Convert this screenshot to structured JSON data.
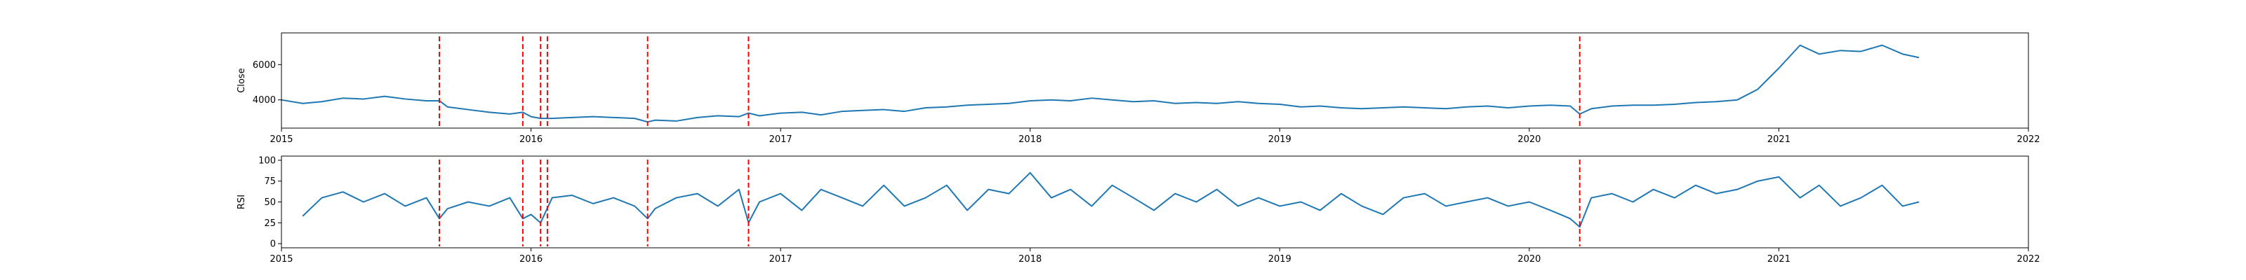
{
  "chart_data": [
    {
      "type": "line",
      "ylabel": "Close",
      "xlabel": "",
      "title": "",
      "xlim": [
        "2015-01-01",
        "2022-01-01"
      ],
      "ylim": [
        2400,
        7800
      ],
      "x_ticks": [
        "2015",
        "2016",
        "2017",
        "2018",
        "2019",
        "2020",
        "2021",
        "2022"
      ],
      "y_ticks": [
        {
          "value": 4000,
          "label": "4000"
        },
        {
          "value": 6000,
          "label": "6000"
        }
      ],
      "line_color": "#1f77b4",
      "vline_color": "#ff0000",
      "vline_style": "dashed",
      "series": [
        {
          "x": [
            "2015-01-01",
            "2015-02-01",
            "2015-03-01",
            "2015-04-01",
            "2015-05-01",
            "2015-06-01",
            "2015-07-01",
            "2015-08-01",
            "2015-08-20",
            "2015-09-01",
            "2015-10-01",
            "2015-11-01",
            "2015-12-01",
            "2015-12-20",
            "2016-01-01",
            "2016-01-15",
            "2016-02-01",
            "2016-03-01",
            "2016-04-01",
            "2016-05-01",
            "2016-06-01",
            "2016-06-20",
            "2016-07-01",
            "2016-08-01",
            "2016-09-01",
            "2016-10-01",
            "2016-11-01",
            "2016-11-15",
            "2016-12-01",
            "2017-01-01",
            "2017-02-01",
            "2017-03-01",
            "2017-04-01",
            "2017-05-01",
            "2017-06-01",
            "2017-07-01",
            "2017-08-01",
            "2017-09-01",
            "2017-10-01",
            "2017-11-01",
            "2017-12-01",
            "2018-01-01",
            "2018-02-01",
            "2018-03-01",
            "2018-04-01",
            "2018-05-01",
            "2018-06-01",
            "2018-07-01",
            "2018-08-01",
            "2018-09-01",
            "2018-10-01",
            "2018-11-01",
            "2018-12-01",
            "2019-01-01",
            "2019-02-01",
            "2019-03-01",
            "2019-04-01",
            "2019-05-01",
            "2019-06-01",
            "2019-07-01",
            "2019-08-01",
            "2019-09-01",
            "2019-10-01",
            "2019-11-01",
            "2019-12-01",
            "2020-01-01",
            "2020-02-01",
            "2020-03-01",
            "2020-03-15",
            "2020-04-01",
            "2020-05-01",
            "2020-06-01",
            "2020-07-01",
            "2020-08-01",
            "2020-09-01",
            "2020-10-01",
            "2020-11-01",
            "2020-12-01",
            "2021-01-01",
            "2021-02-01",
            "2021-03-01",
            "2021-04-01",
            "2021-05-01",
            "2021-06-01",
            "2021-07-01",
            "2021-07-25"
          ],
          "y": [
            4000,
            3800,
            3900,
            4100,
            4050,
            4200,
            4050,
            3950,
            3950,
            3600,
            3450,
            3300,
            3200,
            3300,
            3050,
            2950,
            2950,
            3000,
            3050,
            3000,
            2950,
            2750,
            2850,
            2800,
            3000,
            3100,
            3050,
            3250,
            3100,
            3250,
            3300,
            3150,
            3350,
            3400,
            3450,
            3350,
            3550,
            3600,
            3700,
            3750,
            3800,
            3950,
            4000,
            3950,
            4100,
            4000,
            3900,
            3950,
            3800,
            3850,
            3800,
            3900,
            3800,
            3750,
            3600,
            3650,
            3550,
            3500,
            3550,
            3600,
            3550,
            3500,
            3600,
            3650,
            3550,
            3650,
            3700,
            3650,
            3200,
            3500,
            3650,
            3700,
            3700,
            3750,
            3850,
            3900,
            4000,
            4600,
            5800,
            7100,
            6600,
            6800,
            6750,
            7100,
            6600,
            6400
          ]
        }
      ],
      "vlines": [
        "2015-08-20",
        "2015-12-20",
        "2016-01-15",
        "2016-01-25",
        "2016-06-20",
        "2016-11-15",
        "2020-03-15"
      ]
    },
    {
      "type": "line",
      "ylabel": "RSI",
      "xlabel": "",
      "title": "",
      "xlim": [
        "2015-01-01",
        "2022-01-01"
      ],
      "ylim": [
        -5,
        105
      ],
      "x_ticks": [
        "2015",
        "2016",
        "2017",
        "2018",
        "2019",
        "2020",
        "2021",
        "2022"
      ],
      "y_ticks": [
        {
          "value": 0,
          "label": "0"
        },
        {
          "value": 25,
          "label": "25"
        },
        {
          "value": 50,
          "label": "50"
        },
        {
          "value": 75,
          "label": "75"
        },
        {
          "value": 100,
          "label": "100"
        }
      ],
      "line_color": "#1f77b4",
      "vline_color": "#ff0000",
      "vline_style": "dashed",
      "series": [
        {
          "x": [
            "2015-02-01",
            "2015-03-01",
            "2015-04-01",
            "2015-05-01",
            "2015-06-01",
            "2015-07-01",
            "2015-08-01",
            "2015-08-20",
            "2015-09-01",
            "2015-10-01",
            "2015-11-01",
            "2015-12-01",
            "2015-12-20",
            "2016-01-01",
            "2016-01-15",
            "2016-02-01",
            "2016-03-01",
            "2016-04-01",
            "2016-05-01",
            "2016-06-01",
            "2016-06-20",
            "2016-07-01",
            "2016-08-01",
            "2016-09-01",
            "2016-10-01",
            "2016-11-01",
            "2016-11-15",
            "2016-12-01",
            "2017-01-01",
            "2017-02-01",
            "2017-03-01",
            "2017-04-01",
            "2017-05-01",
            "2017-06-01",
            "2017-07-01",
            "2017-08-01",
            "2017-09-01",
            "2017-10-01",
            "2017-11-01",
            "2017-12-01",
            "2018-01-01",
            "2018-02-01",
            "2018-03-01",
            "2018-04-01",
            "2018-05-01",
            "2018-06-01",
            "2018-07-01",
            "2018-08-01",
            "2018-09-01",
            "2018-10-01",
            "2018-11-01",
            "2018-12-01",
            "2019-01-01",
            "2019-02-01",
            "2019-03-01",
            "2019-04-01",
            "2019-05-01",
            "2019-06-01",
            "2019-07-01",
            "2019-08-01",
            "2019-09-01",
            "2019-10-01",
            "2019-11-01",
            "2019-12-01",
            "2020-01-01",
            "2020-02-01",
            "2020-03-01",
            "2020-03-15",
            "2020-04-01",
            "2020-05-01",
            "2020-06-01",
            "2020-07-01",
            "2020-08-01",
            "2020-09-01",
            "2020-10-01",
            "2020-11-01",
            "2020-12-01",
            "2021-01-01",
            "2021-02-01",
            "2021-03-01",
            "2021-04-01",
            "2021-05-01",
            "2021-06-01",
            "2021-07-01",
            "2021-07-25"
          ],
          "y": [
            33,
            55,
            62,
            50,
            60,
            45,
            55,
            30,
            42,
            50,
            45,
            55,
            30,
            35,
            25,
            55,
            58,
            48,
            55,
            45,
            30,
            42,
            55,
            60,
            45,
            65,
            25,
            50,
            60,
            40,
            65,
            55,
            45,
            70,
            45,
            55,
            70,
            40,
            65,
            60,
            85,
            55,
            65,
            45,
            70,
            55,
            40,
            60,
            50,
            65,
            45,
            55,
            45,
            50,
            40,
            60,
            45,
            35,
            55,
            60,
            45,
            50,
            55,
            45,
            50,
            40,
            30,
            20,
            55,
            60,
            50,
            65,
            55,
            70,
            60,
            65,
            75,
            80,
            55,
            70,
            45,
            55,
            70,
            45,
            50
          ]
        }
      ],
      "vlines": [
        "2015-08-20",
        "2015-12-20",
        "2016-01-15",
        "2016-01-25",
        "2016-06-20",
        "2016-11-15",
        "2020-03-15"
      ]
    }
  ]
}
